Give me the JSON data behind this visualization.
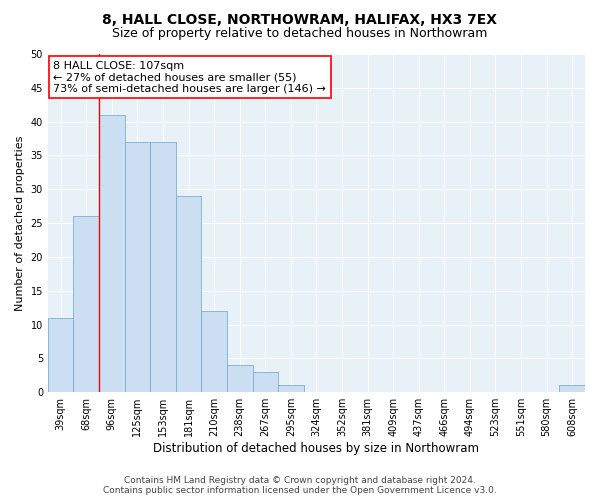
{
  "title": "8, HALL CLOSE, NORTHOWRAM, HALIFAX, HX3 7EX",
  "subtitle": "Size of property relative to detached houses in Northowram",
  "xlabel": "Distribution of detached houses by size in Northowram",
  "ylabel": "Number of detached properties",
  "categories": [
    "39sqm",
    "68sqm",
    "96sqm",
    "125sqm",
    "153sqm",
    "181sqm",
    "210sqm",
    "238sqm",
    "267sqm",
    "295sqm",
    "324sqm",
    "352sqm",
    "381sqm",
    "409sqm",
    "437sqm",
    "466sqm",
    "494sqm",
    "523sqm",
    "551sqm",
    "580sqm",
    "608sqm"
  ],
  "values": [
    11,
    26,
    41,
    37,
    37,
    29,
    12,
    4,
    3,
    1,
    0,
    0,
    0,
    0,
    0,
    0,
    0,
    0,
    0,
    0,
    1
  ],
  "bar_color": "#ccdff2",
  "bar_edge_color": "#7bafd4",
  "red_line_index": 2,
  "annotation_line1": "8 HALL CLOSE: 107sqm",
  "annotation_line2": "← 27% of detached houses are smaller (55)",
  "annotation_line3": "73% of semi-detached houses are larger (146) →",
  "annotation_box_color": "white",
  "annotation_box_edge_color": "red",
  "ylim": [
    0,
    50
  ],
  "yticks": [
    0,
    5,
    10,
    15,
    20,
    25,
    30,
    35,
    40,
    45,
    50
  ],
  "background_color": "#e8f0f8",
  "footer_line1": "Contains HM Land Registry data © Crown copyright and database right 2024.",
  "footer_line2": "Contains public sector information licensed under the Open Government Licence v3.0.",
  "title_fontsize": 10,
  "subtitle_fontsize": 9,
  "xlabel_fontsize": 8.5,
  "ylabel_fontsize": 8,
  "tick_fontsize": 7,
  "annotation_fontsize": 8,
  "footer_fontsize": 6.5
}
